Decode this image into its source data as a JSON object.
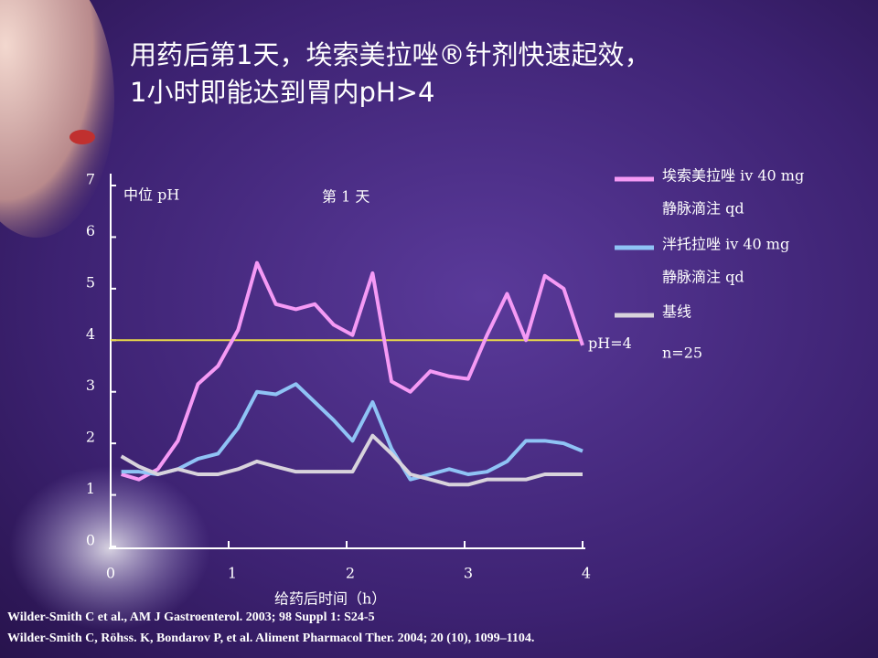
{
  "chart_data": {
    "type": "line",
    "title_lines": [
      "用药后第1天，埃索美拉唑®针剂快速起效，",
      "1小时即能达到胃内pH>4"
    ],
    "y_label": "中位 pH",
    "subtitle": "第 1 天",
    "x_label": "给药后时间（h）",
    "annotation": "n=25",
    "x": [
      0.09,
      0.24,
      0.4,
      0.57,
      0.74,
      0.91,
      1.08,
      1.24,
      1.4,
      1.57,
      1.73,
      1.89,
      2.05,
      2.22,
      2.38,
      2.54,
      2.71,
      2.87,
      3.03,
      3.19,
      3.36,
      3.52,
      3.68,
      3.84,
      4.0
    ],
    "series": [
      {
        "name": "埃索美拉唑 iv 40 mg",
        "dose": "静脉滴注 qd",
        "color": "#f59af5",
        "values": [
          1.4,
          1.3,
          1.5,
          2.05,
          3.15,
          3.5,
          4.2,
          5.5,
          4.7,
          4.6,
          4.7,
          4.3,
          4.1,
          5.3,
          3.2,
          3.0,
          3.4,
          3.3,
          3.25,
          4.1,
          4.9,
          4.0,
          5.25,
          5.0,
          3.9
        ]
      },
      {
        "name": "泮托拉唑 iv 40 mg",
        "dose": "静脉滴注 qd",
        "color": "#8fc3f5",
        "values": [
          1.45,
          1.45,
          1.4,
          1.5,
          1.7,
          1.8,
          2.3,
          3.0,
          2.95,
          3.15,
          2.8,
          2.45,
          2.05,
          2.8,
          1.9,
          1.3,
          1.4,
          1.5,
          1.4,
          1.45,
          1.65,
          2.05,
          2.05,
          2.0,
          1.85
        ]
      },
      {
        "name": "基线",
        "color": "#d8d3dc",
        "values": [
          1.75,
          1.55,
          1.4,
          1.5,
          1.4,
          1.4,
          1.5,
          1.65,
          1.55,
          1.45,
          1.45,
          1.45,
          1.45,
          2.15,
          1.8,
          1.4,
          1.3,
          1.2,
          1.2,
          1.3,
          1.3,
          1.3,
          1.4,
          1.4,
          1.4
        ]
      }
    ],
    "reference_line": {
      "value": 4,
      "label": "pH=4",
      "color": "#e8d84a"
    },
    "xlim": [
      0,
      4
    ],
    "xticks": [
      0,
      1,
      2,
      3,
      4
    ],
    "ylim": [
      0,
      7
    ],
    "yticks": [
      0,
      1,
      2,
      3,
      4,
      5,
      6,
      7
    ],
    "references": [
      "Wilder-Smith C  et al., AM J Gastroenterol. 2003; 98 Suppl 1: S24-5",
      "Wilder-Smith C, Röhss. K, Bondarov P, et al. Aliment Pharmacol Ther. 2004; 20 (10), 1099–1104."
    ]
  }
}
